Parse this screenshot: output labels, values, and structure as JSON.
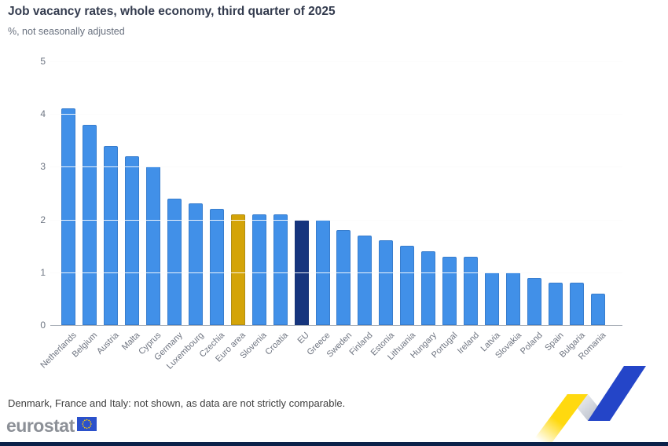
{
  "footnote": "Denmark, France and Italy: not shown, as data are not strictly comparable.",
  "logo": {
    "text": "eurostat"
  },
  "colors": {
    "bar_default": "#4190e8",
    "bar_euro_area": "#d4a408",
    "bar_eu": "#16357e",
    "gridline": "#d9dce0",
    "bottom_strip": "#0b2149",
    "ribbon_yellow": "#ffd90f",
    "ribbon_blue": "#2445c8",
    "flag_blue": "#2b51cb",
    "flag_stars": "#ffcc00"
  },
  "chart_data": {
    "type": "bar",
    "title": "Job vacancy rates, whole economy, third quarter of 2025",
    "subtitle": "%, not seasonally adjusted",
    "xlabel": "",
    "ylabel": "%",
    "ylim": [
      0,
      5
    ],
    "yticks": [
      0,
      1,
      2,
      3,
      4,
      5
    ],
    "grid": "horizontal, light gray, drawn over bars in white",
    "legend_position": "none",
    "highlight_note": "Euro area bar is gold, EU bar is dark navy, countries are blue",
    "series": [
      {
        "label": "Netherlands",
        "value": 4.1,
        "color": "default"
      },
      {
        "label": "Belgium",
        "value": 3.8,
        "color": "default"
      },
      {
        "label": "Austria",
        "value": 3.4,
        "color": "default"
      },
      {
        "label": "Malta",
        "value": 3.2,
        "color": "default"
      },
      {
        "label": "Cyprus",
        "value": 3.0,
        "color": "default"
      },
      {
        "label": "Germany",
        "value": 2.4,
        "color": "default"
      },
      {
        "label": "Luxembourg",
        "value": 2.3,
        "color": "default"
      },
      {
        "label": "Czechia",
        "value": 2.2,
        "color": "default"
      },
      {
        "label": "Euro area",
        "value": 2.1,
        "color": "euro_area"
      },
      {
        "label": "Slovenia",
        "value": 2.1,
        "color": "default"
      },
      {
        "label": "Croatia",
        "value": 2.1,
        "color": "default"
      },
      {
        "label": "EU",
        "value": 2.0,
        "color": "eu"
      },
      {
        "label": "Greece",
        "value": 2.0,
        "color": "default"
      },
      {
        "label": "Sweden",
        "value": 1.8,
        "color": "default"
      },
      {
        "label": "Finland",
        "value": 1.7,
        "color": "default"
      },
      {
        "label": "Estonia",
        "value": 1.6,
        "color": "default"
      },
      {
        "label": "Lithuania",
        "value": 1.5,
        "color": "default"
      },
      {
        "label": "Hungary",
        "value": 1.4,
        "color": "default"
      },
      {
        "label": "Portugal",
        "value": 1.3,
        "color": "default"
      },
      {
        "label": "Ireland",
        "value": 1.3,
        "color": "default"
      },
      {
        "label": "Latvia",
        "value": 1.0,
        "color": "default"
      },
      {
        "label": "Slovakia",
        "value": 1.0,
        "color": "default"
      },
      {
        "label": "Poland",
        "value": 0.9,
        "color": "default"
      },
      {
        "label": "Spain",
        "value": 0.8,
        "color": "default"
      },
      {
        "label": "Bulgaria",
        "value": 0.8,
        "color": "default"
      },
      {
        "label": "Romania",
        "value": 0.6,
        "color": "default"
      }
    ]
  }
}
